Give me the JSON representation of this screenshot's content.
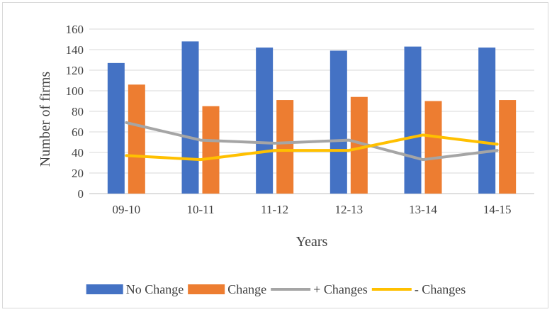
{
  "chart_data": {
    "type": "bar",
    "title": "",
    "xlabel": "Years",
    "ylabel": "Number of firms",
    "ylim": [
      0,
      160
    ],
    "yticks": [
      0,
      20,
      40,
      60,
      80,
      100,
      120,
      140,
      160
    ],
    "grid": true,
    "legend_position": "bottom",
    "categories": [
      "09-10",
      "10-11",
      "11-12",
      "12-13",
      "13-14",
      "14-15"
    ],
    "series": [
      {
        "name": "No Change",
        "kind": "bar",
        "color": "#4472C4",
        "values": [
          127,
          148,
          142,
          139,
          143,
          142
        ]
      },
      {
        "name": "Change",
        "kind": "bar",
        "color": "#ED7D31",
        "values": [
          106,
          85,
          91,
          94,
          90,
          91
        ]
      },
      {
        "name": "+ Changes",
        "kind": "line",
        "color": "#A5A5A5",
        "values": [
          69,
          52,
          49,
          52,
          33,
          42
        ]
      },
      {
        "name": "- Changes",
        "kind": "line",
        "color": "#FFC000",
        "values": [
          37,
          33,
          42,
          42,
          57,
          48
        ]
      }
    ]
  }
}
